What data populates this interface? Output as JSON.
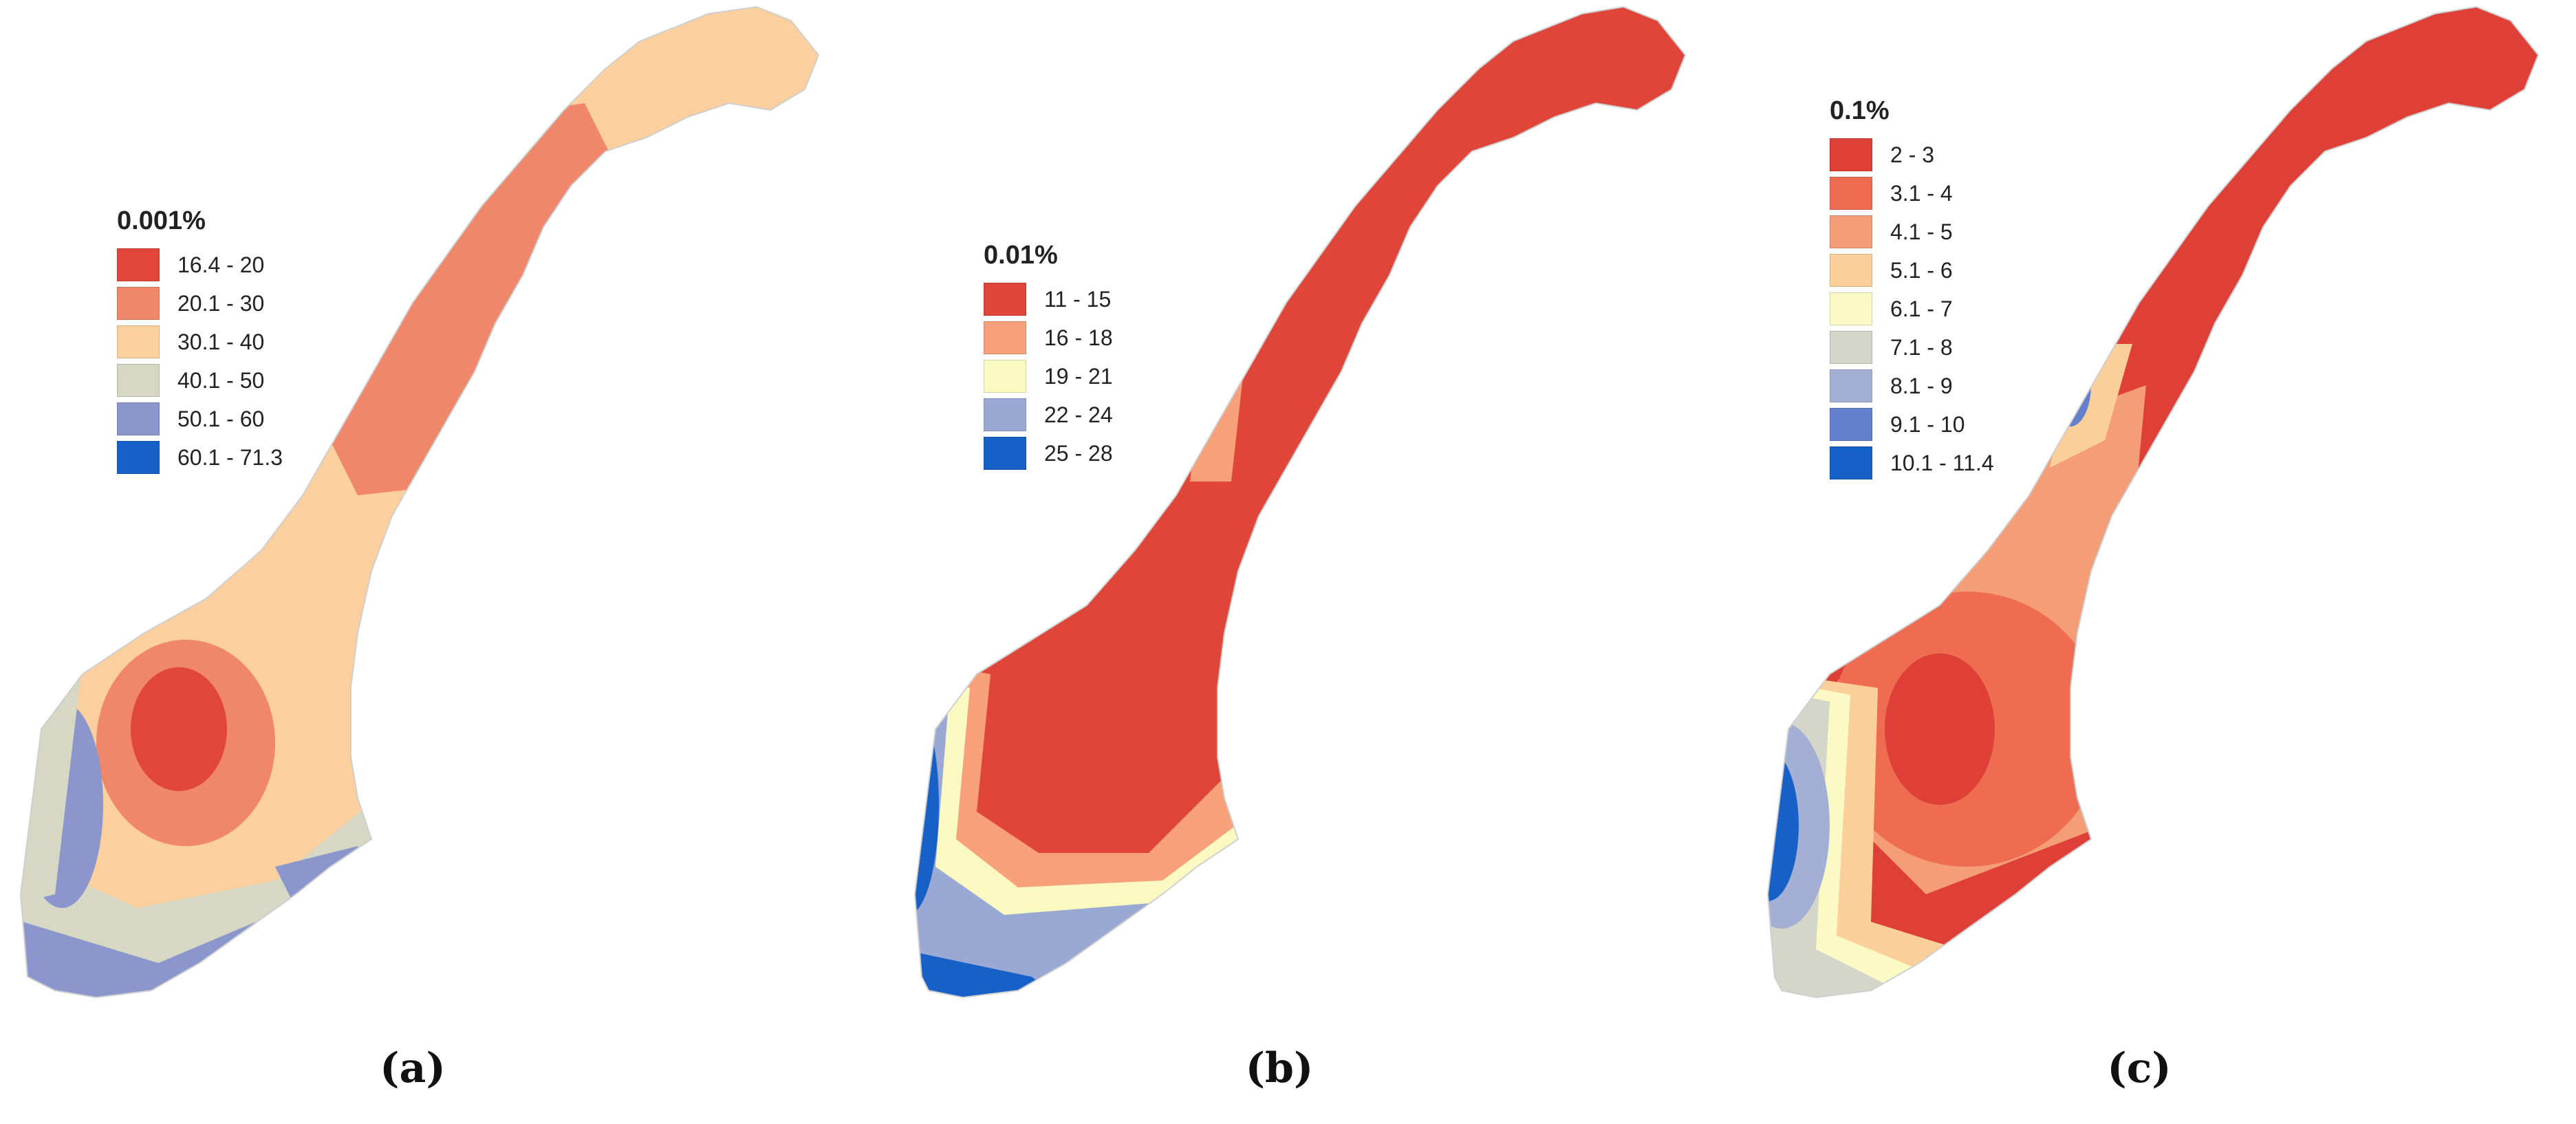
{
  "panels": [
    {
      "caption": "(a)",
      "legend": {
        "title": "0.001%",
        "items": [
          {
            "label": "16.4 - 20",
            "color": "#e0473a"
          },
          {
            "label": "20.1 - 30",
            "color": "#f0866a"
          },
          {
            "label": "30.1 - 40",
            "color": "#fbcf9e"
          },
          {
            "label": "40.1 - 50",
            "color": "#d6d8c4"
          },
          {
            "label": "50.1 - 60",
            "color": "#8a96cc"
          },
          {
            "label": "60.1 - 71.3",
            "color": "#1660c8"
          }
        ]
      }
    },
    {
      "caption": "(b)",
      "legend": {
        "title": "0.01%",
        "items": [
          {
            "label": "11 - 15",
            "color": "#df4538"
          },
          {
            "label": "16 - 18",
            "color": "#f7a07a"
          },
          {
            "label": "19 - 21",
            "color": "#fbf9c2"
          },
          {
            "label": "22 - 24",
            "color": "#9aa8d4"
          },
          {
            "label": "25 - 28",
            "color": "#1660c8"
          }
        ]
      }
    },
    {
      "caption": "(c)",
      "legend": {
        "title": "0.1%",
        "items": [
          {
            "label": "2 - 3",
            "color": "#de3f36"
          },
          {
            "label": "3.1 - 4",
            "color": "#ee6c52"
          },
          {
            "label": "4.1 - 5",
            "color": "#f59d77"
          },
          {
            "label": "5.1 - 6",
            "color": "#fbcf9a"
          },
          {
            "label": "6.1 - 7",
            "color": "#fbfac4"
          },
          {
            "label": "7.1 - 8",
            "color": "#d3d6c9"
          },
          {
            "label": "8.1 - 9",
            "color": "#a4afd4"
          },
          {
            "label": "9.1 - 10",
            "color": "#6480cc"
          },
          {
            "label": "10.1 - 11.4",
            "color": "#1660c8"
          }
        ]
      }
    }
  ]
}
